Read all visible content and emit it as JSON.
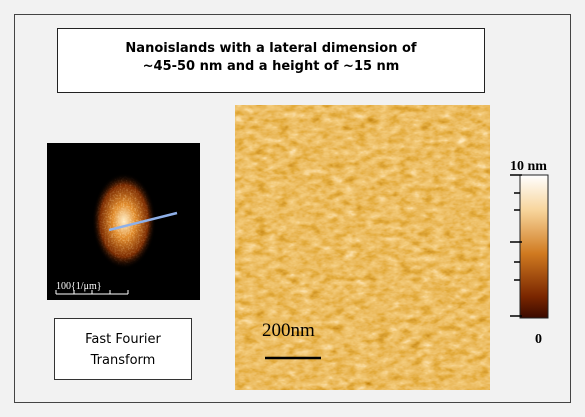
{
  "header": {
    "title_lines": [
      "Nanoislands with a lateral dimension of",
      "~45-50 nm and a height of ~15 nm"
    ]
  },
  "fft": {
    "scale_label": "100{1/μm}",
    "caption_lines": [
      "Fast Fourier",
      "Transform"
    ]
  },
  "afm": {
    "scale_bar": "200nm"
  },
  "colorbar": {
    "max_label": "10 nm",
    "min_label": "0"
  }
}
